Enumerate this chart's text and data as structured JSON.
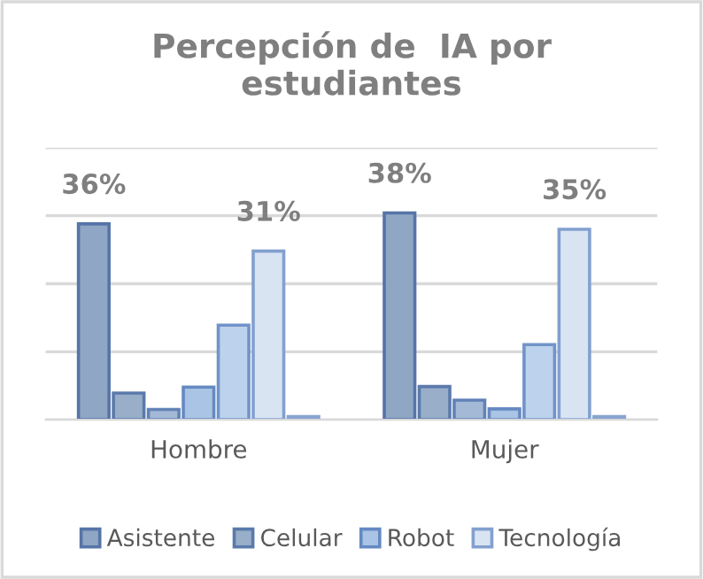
{
  "chart_data": {
    "type": "bar",
    "title": "Percepción de  IA por\nestudiantes",
    "grid": "y",
    "legend": "bottom",
    "tick_labels": "x",
    "ylim": [
      0,
      50
    ],
    "yticks": [
      {
        "value": 0,
        "label": null
      },
      {
        "value": 12.5,
        "label": null
      },
      {
        "value": 25,
        "label": null
      },
      {
        "value": 37.5,
        "label": null
      },
      {
        "value": 50,
        "label": null
      }
    ],
    "categories": [
      "Hombre",
      "Mujer"
    ],
    "series": [
      {
        "name": "Asistente",
        "color": "#8fa6c4",
        "values": [
          36,
          38
        ],
        "value_labels": [
          "36%",
          "38%"
        ]
      },
      {
        "name": "Celular",
        "color": "#98aec9",
        "values": [
          4.9,
          6.1
        ]
      },
      {
        "color": "#a3b9d6",
        "values": [
          1.9,
          3.6
        ]
      },
      {
        "name": "Robot",
        "color": "#a9c4e4",
        "values": [
          6,
          2
        ]
      },
      {
        "color": "#bdd2ec",
        "values": [
          17.4,
          13.8
        ]
      },
      {
        "name": "Tecnología",
        "color": "#d9e4f3",
        "values": [
          31,
          35
        ],
        "value_labels": [
          "31%",
          "35%"
        ]
      },
      {
        "color": "#e3eaf3",
        "values": [
          0.6,
          0.6
        ]
      }
    ]
  }
}
